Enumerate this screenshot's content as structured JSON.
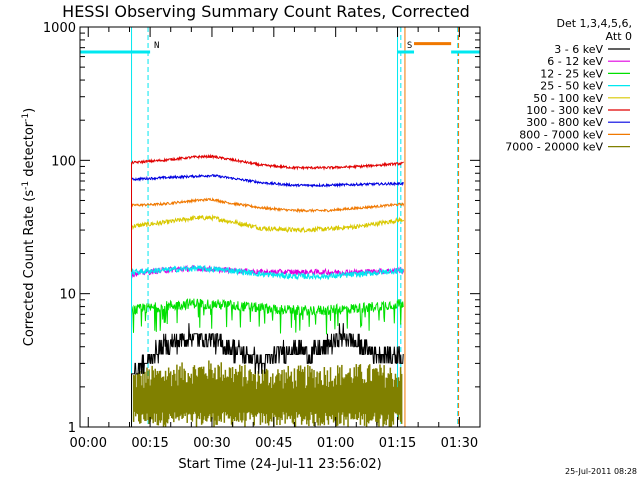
{
  "chart_data": {
    "type": "line",
    "title": "HESSI Observing Summary Count Rates, Corrected",
    "ylabel": "Corrected Count Rate (s",
    "ylabel_sup1": "-1",
    "ylabel_mid": " detector",
    "ylabel_sup2": "-1",
    "ylabel_end": ")",
    "xlabel": "Start Time (24-Jul-11 23:56:02)",
    "footer_date": "25-Jul-2011 08:28",
    "y_scale": "log",
    "ylim": [
      1,
      1000
    ],
    "xlim_minutes": [
      -2,
      95
    ],
    "x_tick_labels": [
      "00:00",
      "00:15",
      "00:30",
      "00:45",
      "01:00",
      "01:15",
      "01:30"
    ],
    "x_tick_minutes": [
      0,
      15,
      30,
      45,
      60,
      75,
      90
    ],
    "y_tick_labels": [
      "1",
      "10",
      "100",
      "1000"
    ],
    "y_tick_values": [
      1,
      10,
      100,
      1000
    ],
    "legend": {
      "header1": "Det 1,3,4,5,6,",
      "header2": "Att 0",
      "entries": [
        {
          "label": "3 - 6 keV",
          "color": "#000000"
        },
        {
          "label": "6 - 12 keV",
          "color": "#e000e0"
        },
        {
          "label": "12 - 25 keV",
          "color": "#00e000"
        },
        {
          "label": "25 - 50 keV",
          "color": "#00e8f0"
        },
        {
          "label": "50 - 100 keV",
          "color": "#d8c800"
        },
        {
          "label": "100 - 300 keV",
          "color": "#e00000"
        },
        {
          "label": "300 - 800 keV",
          "color": "#0000e0"
        },
        {
          "label": "800 - 7000 keV",
          "color": "#f07800"
        },
        {
          "label": "7000 - 20000 keV",
          "color": "#808000"
        }
      ]
    },
    "data_window_minutes": [
      10.5,
      76.5
    ],
    "series": [
      {
        "name": "3 - 6 keV",
        "color": "#000000",
        "x": [
          10.5,
          14,
          18,
          22,
          26,
          30,
          34,
          38,
          42,
          46,
          50,
          54,
          58,
          62,
          66,
          70,
          73,
          76.5
        ],
        "y": [
          2.5,
          3.0,
          4.0,
          4.5,
          4.8,
          4.5,
          4.0,
          3.5,
          3.0,
          3.5,
          4.0,
          3.5,
          4.0,
          5.0,
          4.0,
          3.5,
          3.5,
          3.5
        ]
      },
      {
        "name": "6 - 12 keV",
        "color": "#e000e0",
        "x": [
          10.5,
          18,
          26,
          34,
          42,
          50,
          58,
          66,
          76.5
        ],
        "y": [
          14,
          15,
          15.5,
          15,
          14.5,
          14.5,
          14.5,
          14.5,
          15
        ]
      },
      {
        "name": "12 - 25 keV",
        "color": "#00e000",
        "x": [
          10.5,
          18,
          26,
          34,
          42,
          50,
          58,
          66,
          76.5
        ],
        "y": [
          7.5,
          8.0,
          8.5,
          8.2,
          7.8,
          7.5,
          7.5,
          7.8,
          8.5
        ]
      },
      {
        "name": "25 - 50 keV",
        "color": "#00e8f0",
        "x": [
          10.5,
          18,
          26,
          34,
          42,
          50,
          58,
          66,
          76.5
        ],
        "y": [
          14.5,
          15,
          15.5,
          15,
          14,
          13.5,
          13.5,
          14,
          15
        ]
      },
      {
        "name": "50 - 100 keV",
        "color": "#d8c800",
        "x": [
          10.5,
          18,
          26,
          30,
          34,
          42,
          50,
          58,
          66,
          76.5
        ],
        "y": [
          32,
          34,
          37,
          37,
          35,
          31,
          30,
          30.5,
          32,
          36
        ]
      },
      {
        "name": "100 - 300 keV",
        "color": "#e00000",
        "x": [
          10.5,
          18,
          26,
          30,
          34,
          42,
          50,
          58,
          66,
          76.5
        ],
        "y": [
          96,
          100,
          106,
          107,
          102,
          92,
          88,
          88,
          90,
          95
        ]
      },
      {
        "name": "300 - 800 keV",
        "color": "#0000e0",
        "x": [
          10.5,
          18,
          26,
          30,
          34,
          42,
          50,
          58,
          66,
          76.5
        ],
        "y": [
          72,
          74,
          76,
          77,
          74,
          68,
          65,
          65,
          66,
          67
        ]
      },
      {
        "name": "800 - 7000 keV",
        "color": "#f07800",
        "x": [
          10.5,
          18,
          26,
          30,
          34,
          42,
          50,
          58,
          66,
          76.5
        ],
        "y": [
          46,
          47,
          50,
          51,
          48,
          44,
          42,
          42,
          44,
          47
        ]
      },
      {
        "name": "7000 - 20000 keV",
        "color": "#808000",
        "x": [
          11,
          20,
          30,
          40,
          50,
          60,
          70,
          76
        ],
        "y": [
          1.8,
          2.0,
          2.2,
          1.9,
          1.9,
          2.0,
          2.0,
          1.9
        ]
      }
    ],
    "cyan_level": {
      "value": 650,
      "color": "#00e8f0",
      "segments_minutes": [
        [
          -2,
          15
        ],
        [
          75,
          79
        ],
        [
          88,
          95
        ]
      ]
    },
    "orange_level": {
      "value": 750,
      "color": "#f07800",
      "segments_minutes": [
        [
          79,
          88
        ]
      ]
    },
    "verticals": [
      {
        "minute": 10.5,
        "color": "#00e8f0",
        "style": "solid"
      },
      {
        "minute": 14.5,
        "color": "#00e8f0",
        "style": "dashed",
        "label": "N"
      },
      {
        "minute": 75,
        "color": "#00e8f0",
        "style": "solid"
      },
      {
        "minute": 75.8,
        "color": "#00e8f0",
        "style": "dashed",
        "label": "S"
      },
      {
        "minute": 76.8,
        "color": "#f07800",
        "style": "solid"
      },
      {
        "minute": 89.6,
        "color": "#00e8f0",
        "style": "dashed"
      },
      {
        "minute": 89.8,
        "color": "#f07800",
        "style": "dashed"
      },
      {
        "minute": -2,
        "color": "#00e8f0",
        "style": "solid"
      }
    ]
  }
}
